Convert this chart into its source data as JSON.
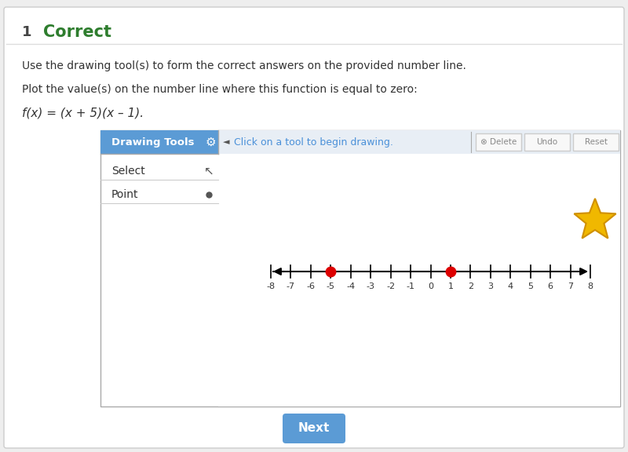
{
  "bg_color": "#eeeeee",
  "panel_bg": "#ffffff",
  "header_num": "1",
  "header_text": "Correct",
  "header_color": "#2e7d2e",
  "instruction1": "Use the drawing tool(s) to form the correct answers on the provided number line.",
  "instruction2": "Plot the value(s) on the number line where this function is equal to zero:",
  "function_text": "f(x) = (x + 5)(x – 1).",
  "drawing_tools_label": "Drawing Tools",
  "drawing_tools_bg": "#5b9bd5",
  "tool_select": "Select",
  "tool_point": "Point",
  "toolbar_hint": "Click on a tool to begin drawing.",
  "toolbar_hint_color": "#4a90d9",
  "toolbar_bg": "#e8eef5",
  "btn_delete": "Delete",
  "btn_undo": "Undo",
  "btn_reset": "Reset",
  "number_line_min": -8,
  "number_line_max": 8,
  "tick_labels": [
    -8,
    -7,
    -6,
    -5,
    -4,
    -3,
    -2,
    -1,
    0,
    1,
    2,
    3,
    4,
    5,
    6,
    7,
    8
  ],
  "zero_points": [
    -5,
    1
  ],
  "point_color": "#dd0000",
  "point_size": 9,
  "next_btn_text": "Next",
  "next_btn_color": "#5b9bd5",
  "star_color": "#f0b800",
  "star_outline": "#d09000"
}
